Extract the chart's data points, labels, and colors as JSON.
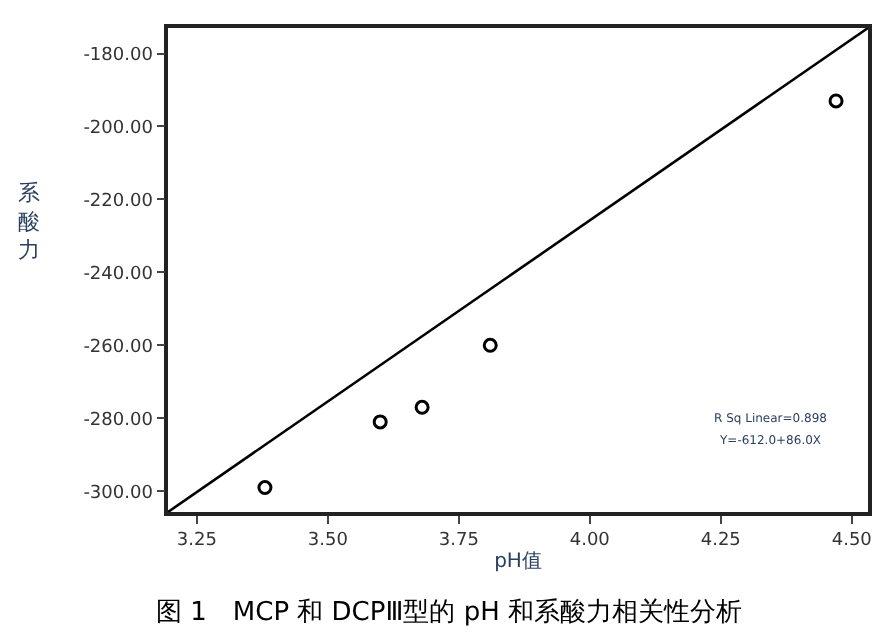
{
  "chart_data": {
    "type": "scatter",
    "title": "图 1　MCP 和 DCPⅢ型的 pH 和系酸力相关性分析",
    "xlabel": "pH值",
    "ylabel": "系酸力",
    "x": [
      3.38,
      3.6,
      3.68,
      3.81,
      4.47
    ],
    "series": [
      {
        "color": "#000000",
        "values": [
          -299,
          -281,
          -277,
          -260,
          -193
        ]
      },
      {
        "type": "line",
        "marker": "none",
        "color": "#000000",
        "x": [
          3.195,
          4.531
        ],
        "values": [
          -305.7,
          -173
        ]
      }
    ],
    "xlim": [
      3.195,
      4.531
    ],
    "ylim": [
      -305.7,
      -173
    ],
    "xticks": [
      {
        "value": 3.25,
        "label": "3.25"
      },
      {
        "value": 3.5,
        "label": "3.50"
      },
      {
        "value": 3.75,
        "label": "3.75"
      },
      {
        "value": 4.0,
        "label": "4.00"
      },
      {
        "value": 4.25,
        "label": "4.25"
      },
      {
        "value": 4.5,
        "label": "4.50"
      }
    ],
    "yticks": [
      {
        "value": -180,
        "label": "-180.00"
      },
      {
        "value": -200,
        "label": "-200.00"
      },
      {
        "value": -220,
        "label": "-220.00"
      },
      {
        "value": -240,
        "label": "-240.00"
      },
      {
        "value": -260,
        "label": "-260.00"
      },
      {
        "value": -280,
        "label": "-280.00"
      },
      {
        "value": -300,
        "label": "-300.00"
      }
    ],
    "annotations": [
      "R Sq Linear=0.898",
      "Y=-612.0+86.0X"
    ],
    "marker": "circle"
  }
}
